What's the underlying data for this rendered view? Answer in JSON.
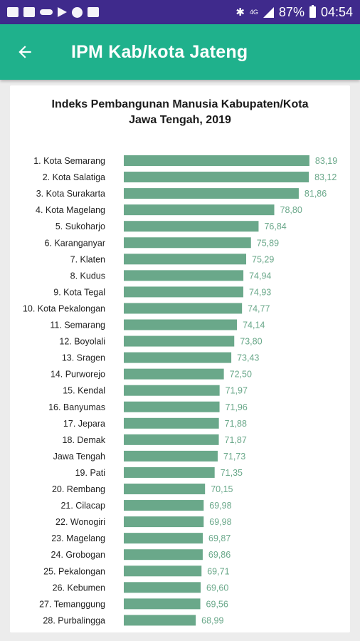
{
  "status_bar": {
    "battery": "87%",
    "time": "04:54",
    "network": "4G",
    "left_icons": [
      "gallery-icon",
      "mail-icon",
      "key-icon",
      "play-store-icon",
      "whatsapp-icon",
      "app-icon"
    ]
  },
  "app_bar": {
    "title": "IPM Kab/kota Jateng",
    "back_icon": "arrow-left-icon",
    "color": "#1fb18c"
  },
  "chart_data": {
    "type": "bar",
    "orientation": "horizontal",
    "title_lines": [
      "Indeks Pembangunan Manusia Kabupaten/Kota",
      "Jawa Tengah, 2019"
    ],
    "bar_color": "#6aa88a",
    "categories": [
      "1. Kota Semarang",
      "2. Kota Salatiga",
      "3. Kota Surakarta",
      "4. Kota Magelang",
      "5. Sukoharjo",
      "6. Karanganyar",
      "7. Klaten",
      "8. Kudus",
      "9. Kota Tegal",
      "10. Kota Pekalongan",
      "11. Semarang",
      "12. Boyolali",
      "13. Sragen",
      "14. Purworejo",
      "15. Kendal",
      "16. Banyumas",
      "17. Jepara",
      "18. Demak",
      "Jawa Tengah",
      "19. Pati",
      "20. Rembang",
      "21. Cilacap",
      "22. Wonogiri",
      "23. Magelang",
      "24. Grobogan",
      "25. Pekalongan",
      "26. Kebumen",
      "27. Temanggung",
      "28. Purbalingga"
    ],
    "values": [
      83.19,
      83.12,
      81.86,
      78.8,
      76.84,
      75.89,
      75.29,
      74.94,
      74.93,
      74.77,
      74.14,
      73.8,
      73.43,
      72.5,
      71.97,
      71.96,
      71.88,
      71.87,
      71.73,
      71.35,
      70.15,
      69.98,
      69.98,
      69.87,
      69.86,
      69.71,
      69.6,
      69.56,
      68.99
    ],
    "value_labels": [
      "83,19",
      "83,12",
      "81,86",
      "78,80",
      "76,84",
      "75,89",
      "75,29",
      "74,94",
      "74,93",
      "74,77",
      "74,14",
      "73,80",
      "73,43",
      "72,50",
      "71,97",
      "71,96",
      "71,88",
      "71,87",
      "71,73",
      "71,35",
      "70,15",
      "69,98",
      "69,98",
      "69,87",
      "69,86",
      "69,71",
      "69,60",
      "69,56",
      "68,99"
    ],
    "xlim": [
      60,
      84
    ]
  }
}
